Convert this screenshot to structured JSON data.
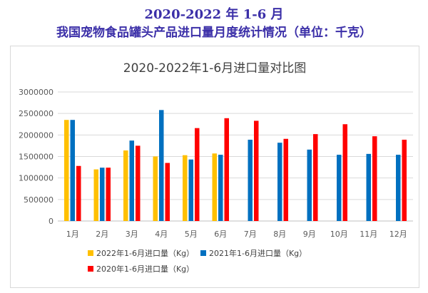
{
  "heading": {
    "line1": "2020-2022 年 1-6 月",
    "line2": "我国宠物食品罐头产品进口量月度统计情况（单位：千克）"
  },
  "chart_data": {
    "type": "bar",
    "title": "2020-2022年1-6月进口量对比图",
    "categories": [
      "1月",
      "2月",
      "3月",
      "4月",
      "5月",
      "6月",
      "7月",
      "8月",
      "9月",
      "10月",
      "11月",
      "12月"
    ],
    "ylim": [
      0,
      3000000
    ],
    "yticks": [
      0,
      500000,
      1000000,
      1500000,
      2000000,
      2500000,
      3000000
    ],
    "ytick_labels": [
      "0",
      "500000",
      "1000000",
      "1500000",
      "2000000",
      "2500000",
      "3000000"
    ],
    "grid": true,
    "legend_position": "bottom",
    "series": [
      {
        "name": "2022年1-6月进口量（Kg）",
        "color": "#ffc000",
        "values": [
          2350000,
          1200000,
          1640000,
          1500000,
          1530000,
          1570000,
          null,
          null,
          null,
          null,
          null,
          null
        ]
      },
      {
        "name": "2021年1-6月进口量（Kg）",
        "color": "#0070c0",
        "values": [
          2350000,
          1240000,
          1870000,
          2580000,
          1430000,
          1540000,
          1890000,
          1820000,
          1660000,
          1540000,
          1560000,
          1540000
        ]
      },
      {
        "name": "2020年1-6月进口量（Kg）",
        "color": "#ff0000",
        "values": [
          1280000,
          1240000,
          1750000,
          1350000,
          2160000,
          2390000,
          2330000,
          1910000,
          2020000,
          2250000,
          1970000,
          1890000
        ]
      }
    ]
  }
}
